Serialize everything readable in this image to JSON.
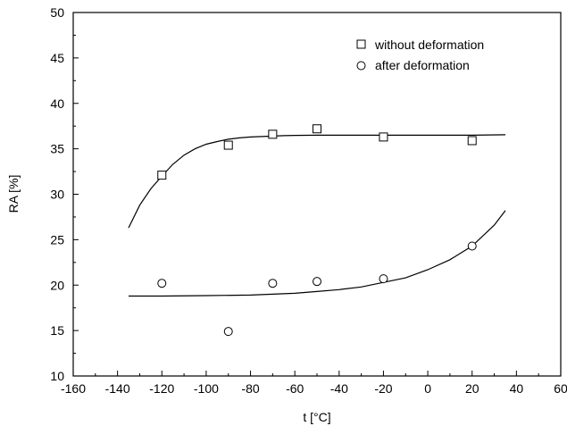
{
  "chart_data": {
    "type": "scatter",
    "xlabel": "t  [°C]",
    "ylabel": "RA  [%]",
    "xlim": [
      -160,
      60
    ],
    "ylim": [
      10,
      50
    ],
    "x_ticks": [
      -160,
      -140,
      -120,
      -100,
      -80,
      -60,
      -40,
      -20,
      0,
      20,
      40,
      60
    ],
    "y_ticks": [
      10,
      15,
      20,
      25,
      30,
      35,
      40,
      45,
      50
    ],
    "grid": false,
    "legend_position": "top-right",
    "series": [
      {
        "name": "without deformation",
        "marker": "square",
        "x": [
          -120,
          -90,
          -70,
          -50,
          -20,
          20
        ],
        "y": [
          32.1,
          35.4,
          36.6,
          37.2,
          36.3,
          35.9
        ],
        "fit": {
          "x": [
            -135,
            -130,
            -125,
            -120,
            -115,
            -110,
            -105,
            -100,
            -95,
            -90,
            -85,
            -80,
            -75,
            -70,
            -65,
            -60,
            -50,
            -40,
            -30,
            -20,
            -10,
            0,
            10,
            20,
            35
          ],
          "y": [
            26.3,
            28.8,
            30.6,
            32.0,
            33.3,
            34.3,
            35.0,
            35.5,
            35.8,
            36.05,
            36.2,
            36.3,
            36.35,
            36.4,
            36.45,
            36.48,
            36.5,
            36.5,
            36.5,
            36.5,
            36.5,
            36.5,
            36.5,
            36.5,
            36.55
          ]
        }
      },
      {
        "name": "after deformation",
        "marker": "circle",
        "x": [
          -120,
          -90,
          -70,
          -50,
          -20,
          20
        ],
        "y": [
          20.2,
          14.9,
          20.2,
          20.4,
          20.7,
          24.3
        ],
        "fit": {
          "x": [
            -135,
            -120,
            -100,
            -80,
            -70,
            -60,
            -50,
            -40,
            -30,
            -20,
            -10,
            0,
            10,
            20,
            30,
            35
          ],
          "y": [
            18.8,
            18.8,
            18.85,
            18.9,
            19.0,
            19.1,
            19.3,
            19.5,
            19.8,
            20.3,
            20.8,
            21.7,
            22.8,
            24.3,
            26.6,
            28.2
          ]
        }
      }
    ]
  }
}
